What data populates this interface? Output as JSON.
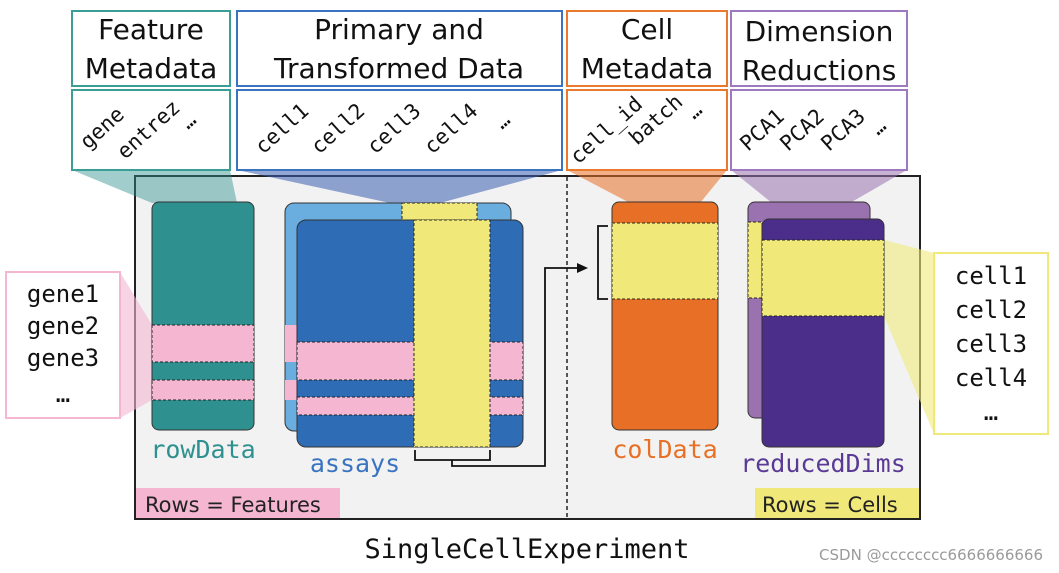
{
  "headers": {
    "feature": {
      "line1": "Feature",
      "line2": "Metadata",
      "fields": [
        "gene",
        "entrez",
        "…"
      ]
    },
    "primary": {
      "line1": "Primary and",
      "line2": "Transformed Data",
      "fields": [
        "cell1",
        "cell2",
        "cell3",
        "cell4",
        "…"
      ]
    },
    "cell": {
      "line1": "Cell",
      "line2": "Metadata",
      "fields": [
        "cell_id",
        "batch",
        "…"
      ]
    },
    "dimred": {
      "line1": "Dimension",
      "line2": "Reductions",
      "fields": [
        "PCA1",
        "PCA2",
        "PCA3",
        "…"
      ]
    }
  },
  "components": {
    "rowData": "rowData",
    "assays": "assays",
    "colData": "colData",
    "reducedDims": "reducedDims"
  },
  "rows_features": "Rows = Features",
  "rows_cells": "Rows = Cells",
  "gene_list": [
    "gene1",
    "gene2",
    "gene3",
    "…"
  ],
  "cell_list": [
    "cell1",
    "cell2",
    "cell3",
    "cell4",
    "…"
  ],
  "title": "SingleCellExperiment",
  "watermark": "CSDN @cccccccc6666666666",
  "colors": {
    "teal": "#2e9190",
    "assay_light": "#6aaee0",
    "assay_dark": "#2e6db5",
    "highlight_yellow": "#f0e97a",
    "highlight_pink": "#f4b6d1",
    "orange": "#e87026",
    "purple_light": "#9b72b0",
    "purple_dark": "#4b2e8a"
  }
}
